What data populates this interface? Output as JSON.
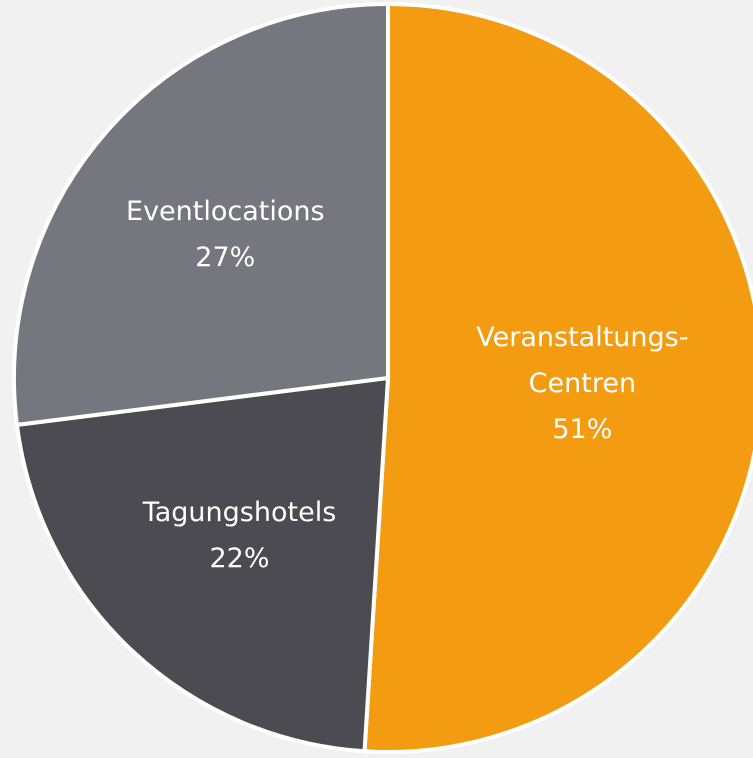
{
  "chart_data": {
    "type": "pie",
    "categories": [
      "Veranstaltungs-\nCentren",
      "Tagungshotels",
      "Eventlocations"
    ],
    "values": [
      51,
      22,
      27
    ],
    "value_labels": [
      "51%",
      "22%",
      "27%"
    ],
    "colors": [
      "#f39c12",
      "#4c4b51",
      "#76767e"
    ]
  }
}
